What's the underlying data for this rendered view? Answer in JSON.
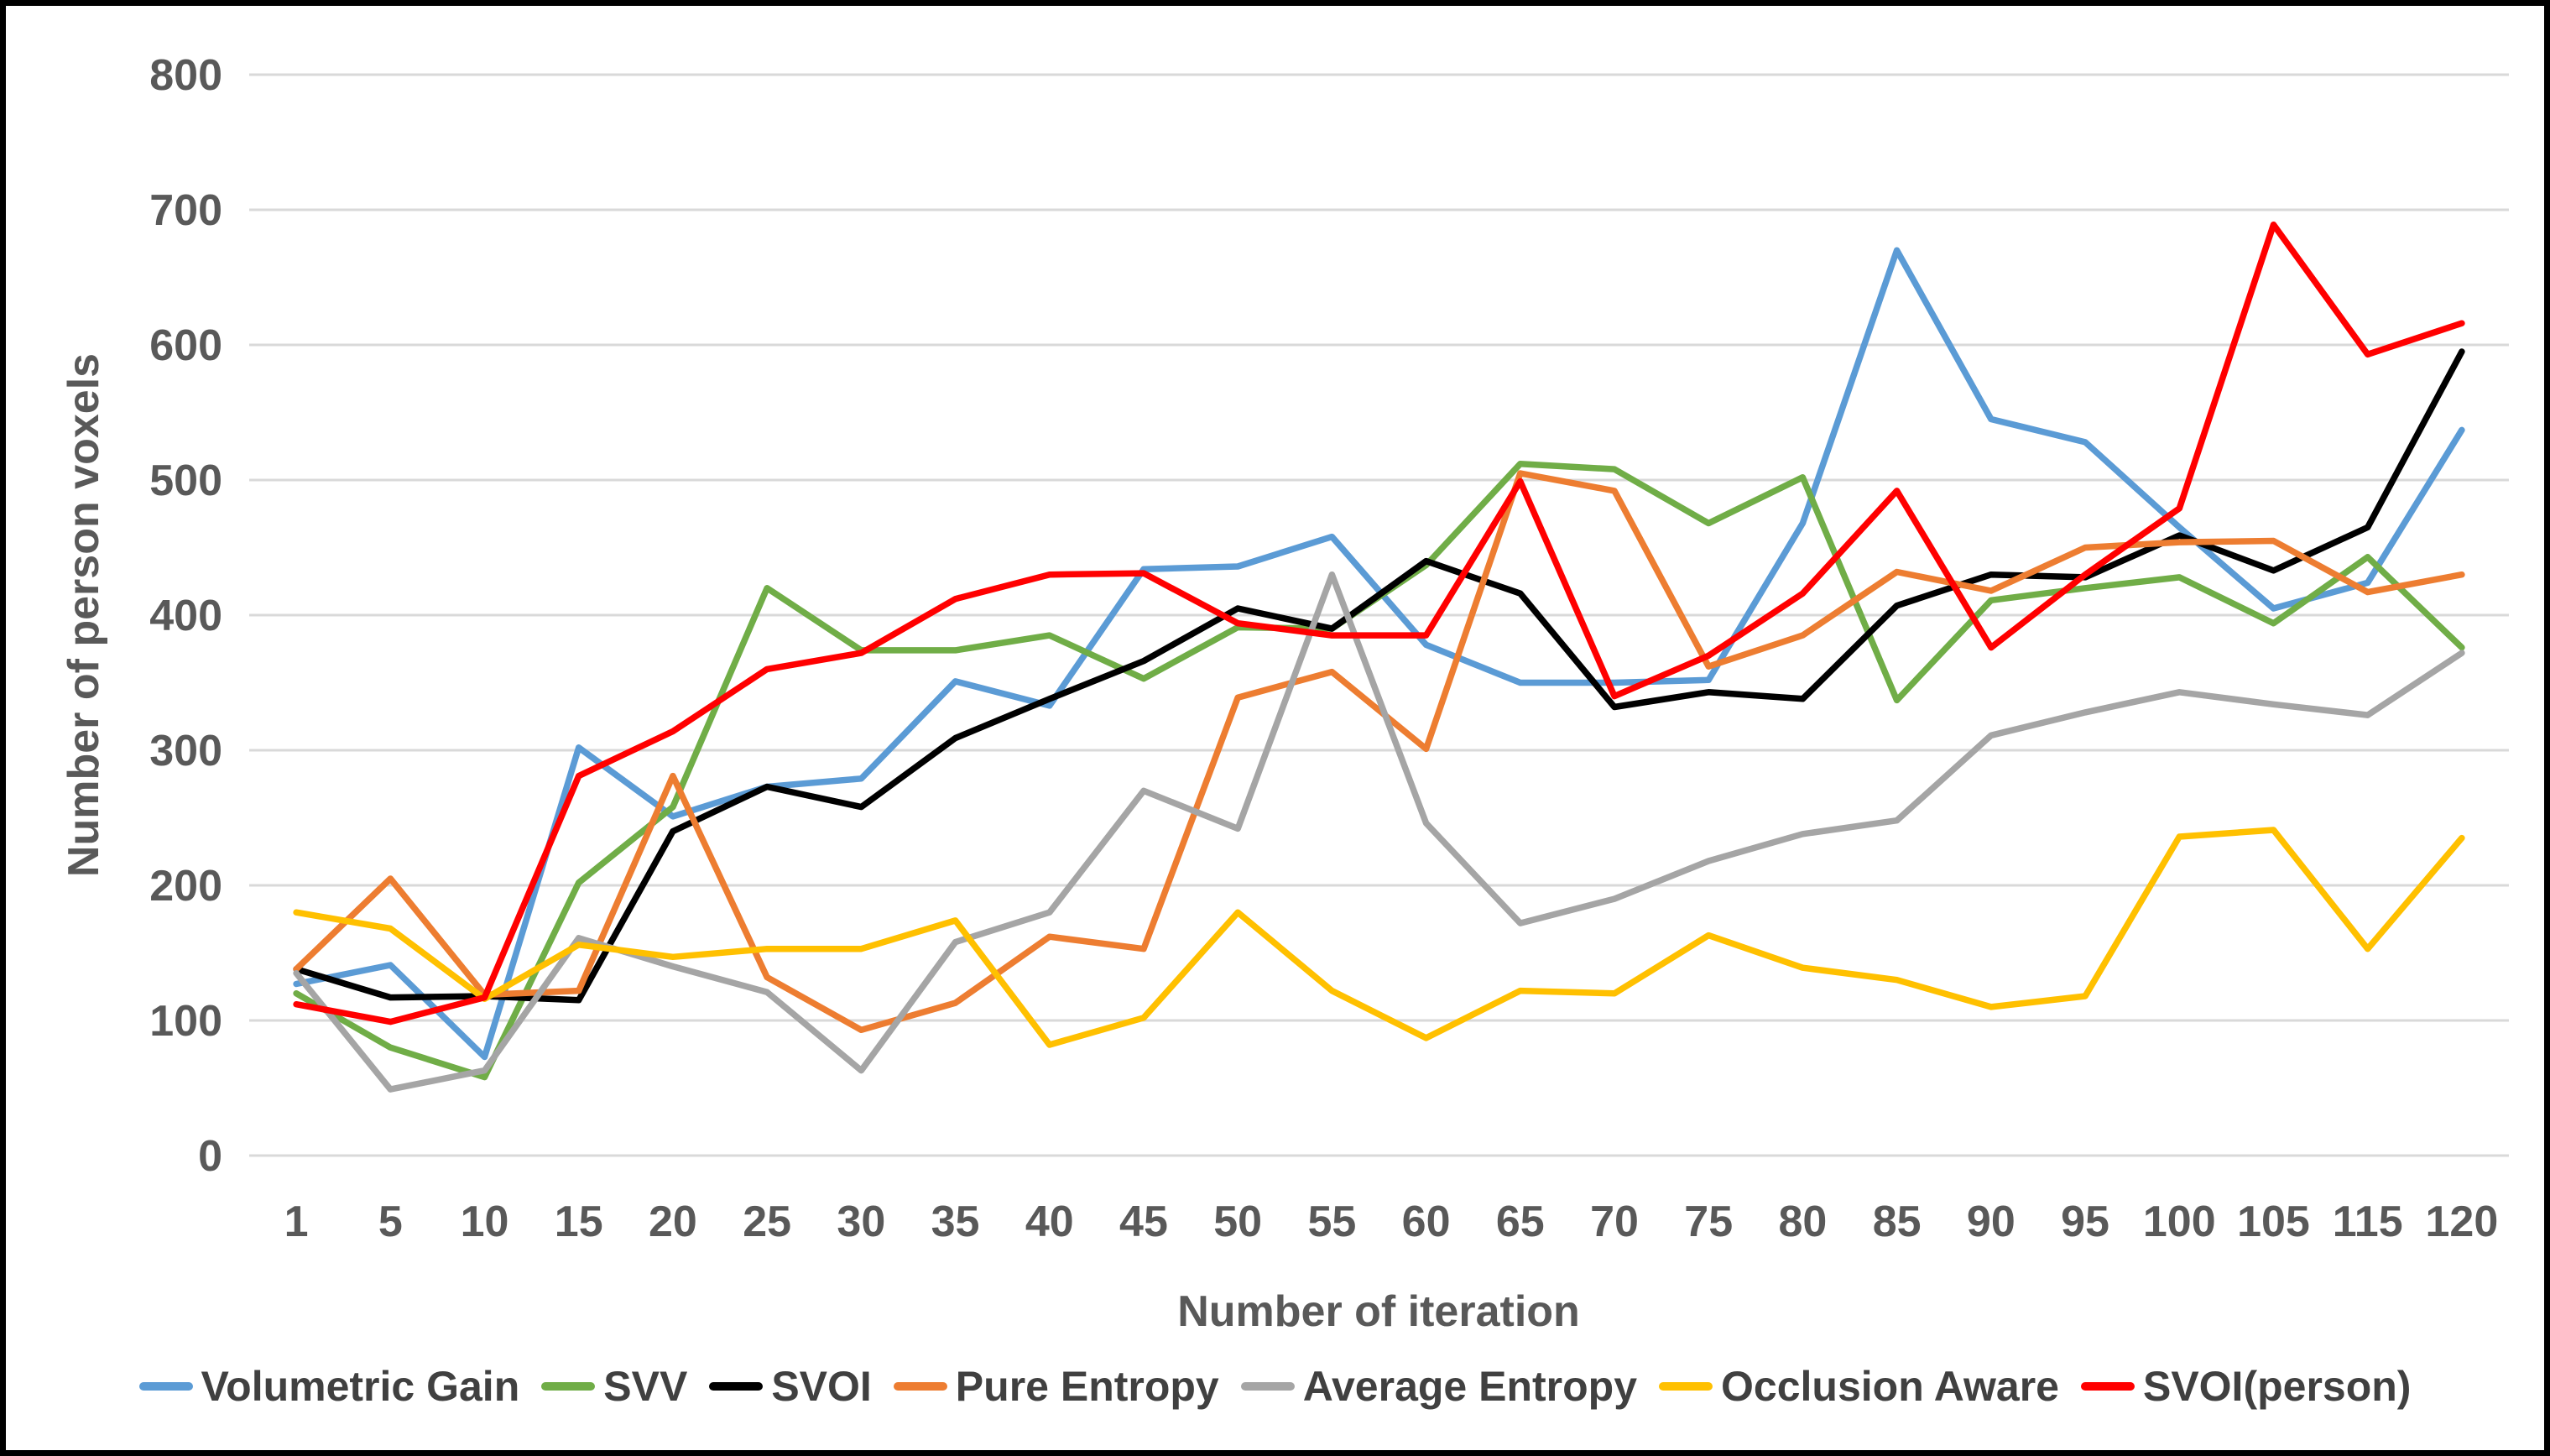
{
  "figure": {
    "background_color": "#FFFFFF",
    "border_color": "#000000",
    "tick_label_color": "#595959",
    "axis_title_color": "#595959",
    "grid_color": "#D9D9D9",
    "legend_text_color": "#404040"
  },
  "chart_data": {
    "type": "line",
    "title": "",
    "xlabel": "Number of iteration",
    "ylabel": "Number of person voxels",
    "ylim": [
      0,
      800
    ],
    "ytick_step": 100,
    "y_tick_labels": [
      "0",
      "100",
      "200",
      "300",
      "400",
      "500",
      "600",
      "700",
      "800"
    ],
    "grid": true,
    "legend_position": "bottom",
    "categories": [
      "1",
      "5",
      "10",
      "15",
      "20",
      "25",
      "30",
      "35",
      "40",
      "45",
      "50",
      "55",
      "60",
      "65",
      "70",
      "75",
      "80",
      "85",
      "90",
      "95",
      "100",
      "105",
      "115",
      "120"
    ],
    "series": [
      {
        "name": "Volumetric Gain",
        "color": "#5B9BD5",
        "values": [
          127,
          141,
          73,
          302,
          251,
          273,
          279,
          351,
          333,
          434,
          436,
          458,
          378,
          350,
          350,
          352,
          468,
          670,
          545,
          528,
          465,
          405,
          424,
          537
        ]
      },
      {
        "name": "SVV",
        "color": "#70AD47",
        "values": [
          120,
          80,
          58,
          202,
          258,
          420,
          374,
          374,
          385,
          353,
          391,
          390,
          437,
          512,
          508,
          468,
          502,
          337,
          411,
          420,
          428,
          394,
          443,
          376
        ]
      },
      {
        "name": "SVOI",
        "color": "#000000",
        "values": [
          138,
          117,
          118,
          115,
          240,
          273,
          258,
          309,
          338,
          366,
          405,
          390,
          440,
          416,
          332,
          343,
          338,
          407,
          430,
          428,
          459,
          433,
          465,
          595
        ]
      },
      {
        "name": "Pure Entropy",
        "color": "#ED7D31",
        "values": [
          138,
          205,
          119,
          122,
          281,
          132,
          93,
          113,
          162,
          153,
          339,
          358,
          301,
          505,
          492,
          362,
          385,
          432,
          418,
          450,
          454,
          455,
          417,
          430
        ]
      },
      {
        "name": "Average Entropy",
        "color": "#A5A5A5",
        "values": [
          135,
          49,
          63,
          161,
          140,
          121,
          63,
          158,
          180,
          270,
          242,
          430,
          246,
          172,
          190,
          218,
          238,
          248,
          311,
          328,
          343,
          334,
          326,
          372
        ]
      },
      {
        "name": "Occlusion Aware",
        "color": "#FFC000",
        "values": [
          180,
          168,
          116,
          156,
          147,
          153,
          153,
          174,
          82,
          102,
          180,
          122,
          87,
          122,
          120,
          163,
          139,
          130,
          110,
          118,
          236,
          241,
          153,
          235
        ]
      },
      {
        "name": "SVOI(person)",
        "color": "#FF0000",
        "values": [
          112,
          99,
          117,
          281,
          314,
          360,
          372,
          412,
          430,
          431,
          394,
          385,
          385,
          499,
          340,
          370,
          416,
          492,
          376,
          430,
          479,
          689,
          593,
          616
        ]
      }
    ]
  }
}
